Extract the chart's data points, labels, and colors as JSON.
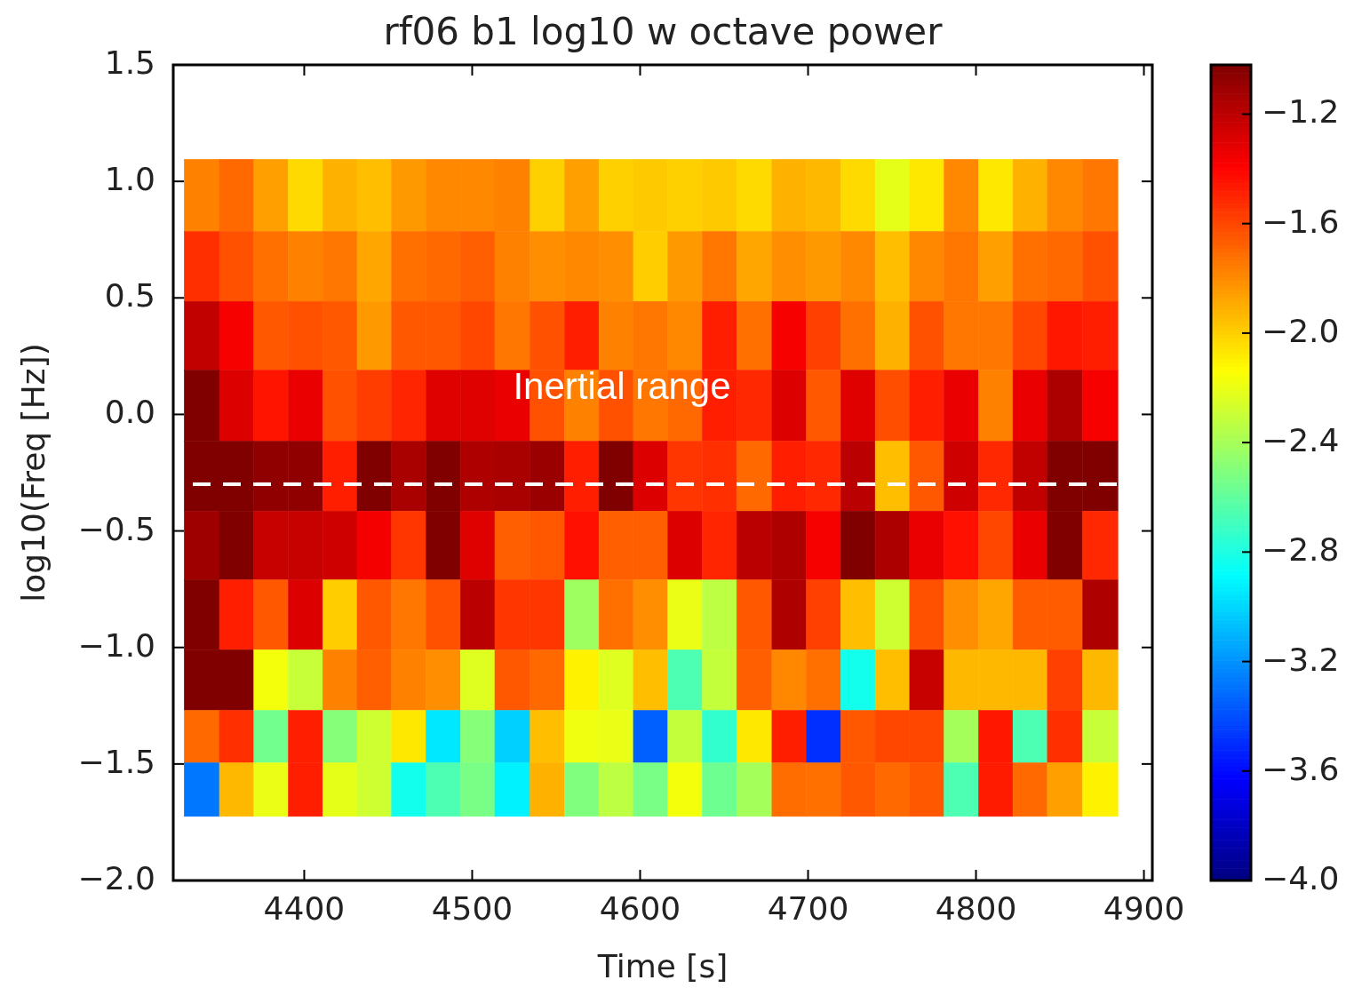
{
  "chart_data": {
    "type": "heatmap",
    "title": "rf06 b1 log10 w octave power",
    "xlabel": "Time [s]",
    "ylabel": "log10(Freq [Hz])",
    "x": [
      4339,
      4360,
      4380,
      4401,
      4421,
      4442,
      4462,
      4483,
      4503,
      4524,
      4545,
      4565,
      4586,
      4606,
      4627,
      4647,
      4668,
      4689,
      4709,
      4730,
      4750,
      4771,
      4791,
      4812,
      4832,
      4853,
      4874
    ],
    "y": [
      0.94,
      0.63,
      0.34,
      0.04,
      -0.27,
      -0.56,
      -0.86,
      -1.16,
      -1.38,
      -1.61
    ],
    "cells": [
      [
        -1.77,
        -1.7,
        -1.86,
        -2.03,
        -1.91,
        -1.95,
        -1.84,
        -1.79,
        -1.79,
        -1.77,
        -2.0,
        -1.86,
        -2.0,
        -1.98,
        -2.0,
        -1.98,
        -2.03,
        -1.91,
        -1.93,
        -2.03,
        -2.21,
        -2.07,
        -1.79,
        -2.07,
        -1.91,
        -1.79,
        -1.74
      ],
      [
        -1.53,
        -1.63,
        -1.72,
        -1.77,
        -1.74,
        -1.88,
        -1.72,
        -1.7,
        -1.67,
        -1.77,
        -1.81,
        -1.79,
        -1.81,
        -1.99,
        -1.84,
        -1.74,
        -1.88,
        -1.81,
        -1.84,
        -1.79,
        -1.95,
        -1.79,
        -1.74,
        -1.86,
        -1.72,
        -1.7,
        -1.63
      ],
      [
        -1.21,
        -1.37,
        -1.65,
        -1.63,
        -1.65,
        -1.84,
        -1.65,
        -1.65,
        -1.6,
        -1.74,
        -1.63,
        -1.48,
        -1.77,
        -1.74,
        -1.79,
        -1.48,
        -1.72,
        -1.37,
        -1.58,
        -1.72,
        -1.91,
        -1.63,
        -1.74,
        -1.74,
        -1.6,
        -1.46,
        -1.48
      ],
      [
        -1.02,
        -1.29,
        -1.45,
        -1.33,
        -1.63,
        -1.57,
        -1.5,
        -1.3,
        -1.3,
        -1.33,
        -1.63,
        -1.77,
        -1.63,
        -1.74,
        -1.7,
        -1.48,
        -1.51,
        -1.29,
        -1.65,
        -1.3,
        -1.62,
        -1.48,
        -1.33,
        -1.77,
        -1.33,
        -1.15,
        -1.37
      ],
      [
        -1.02,
        -1.02,
        -1.07,
        -1.07,
        -1.48,
        -1.02,
        -1.14,
        -1.02,
        -1.16,
        -1.14,
        -1.1,
        -1.48,
        -1.02,
        -1.29,
        -1.55,
        -1.53,
        -1.7,
        -1.48,
        -1.51,
        -1.19,
        -1.95,
        -1.65,
        -1.25,
        -1.51,
        -1.21,
        -1.02,
        -1.02
      ],
      [
        -1.11,
        -1.02,
        -1.23,
        -1.23,
        -1.25,
        -1.36,
        -1.55,
        -1.02,
        -1.3,
        -1.67,
        -1.65,
        -1.44,
        -1.67,
        -1.67,
        -1.29,
        -1.5,
        -1.19,
        -1.16,
        -1.37,
        -1.02,
        -1.15,
        -1.33,
        -1.44,
        -1.6,
        -1.33,
        -1.02,
        -1.51
      ],
      [
        -1.02,
        -1.48,
        -1.65,
        -1.29,
        -1.99,
        -1.65,
        -1.74,
        -1.63,
        -1.19,
        -1.55,
        -1.55,
        -2.42,
        -1.72,
        -1.81,
        -2.2,
        -2.33,
        -1.65,
        -1.16,
        -1.58,
        -1.95,
        -2.28,
        -1.63,
        -1.81,
        -1.88,
        -1.66,
        -1.66,
        -1.16
      ],
      [
        -1.02,
        -1.02,
        -2.17,
        -2.3,
        -1.77,
        -1.67,
        -1.77,
        -1.81,
        -2.23,
        -1.65,
        -1.7,
        -2.1,
        -2.23,
        -1.95,
        -2.66,
        -2.31,
        -1.67,
        -1.79,
        -1.72,
        -2.83,
        -1.95,
        -1.23,
        -1.93,
        -1.93,
        -1.93,
        -1.58,
        -1.93
      ],
      [
        -1.7,
        -1.53,
        -2.55,
        -1.48,
        -2.49,
        -2.28,
        -2.07,
        -2.95,
        -2.49,
        -3.02,
        -1.95,
        -2.18,
        -2.2,
        -3.35,
        -2.31,
        -2.74,
        -2.07,
        -1.48,
        -3.49,
        -1.65,
        -1.6,
        -1.6,
        -2.4,
        -1.46,
        -2.66,
        -1.53,
        -2.3
      ],
      [
        -3.28,
        -1.93,
        -2.2,
        -1.48,
        -2.21,
        -2.28,
        -2.83,
        -2.66,
        -2.53,
        -2.92,
        -1.91,
        -2.51,
        -2.33,
        -2.53,
        -2.17,
        -2.56,
        -2.4,
        -1.71,
        -1.72,
        -1.65,
        -1.7,
        -1.65,
        -2.66,
        -1.47,
        -1.7,
        -1.86,
        -2.1
      ]
    ],
    "xlim": [
      4322,
      4905
    ],
    "xticks": [
      4400,
      4500,
      4600,
      4700,
      4800,
      4900
    ],
    "ylim": [
      -2.0,
      1.5
    ],
    "yticks": [
      {
        "value": -2.0,
        "label": "−2.0"
      },
      {
        "value": -1.5,
        "label": "−1.5"
      },
      {
        "value": -1.0,
        "label": "−1.0"
      },
      {
        "value": -0.5,
        "label": "−0.5"
      },
      {
        "value": 0.0,
        "label": "0.0"
      },
      {
        "value": 0.5,
        "label": "0.5"
      },
      {
        "value": 1.0,
        "label": "1.0"
      },
      {
        "value": 1.5,
        "label": "1.5"
      }
    ],
    "clim": [
      -4.0,
      -1.02
    ],
    "cticks": [
      {
        "value": -4.0,
        "label": "−4.0"
      },
      {
        "value": -3.6,
        "label": "−3.6"
      },
      {
        "value": -3.2,
        "label": "−3.2"
      },
      {
        "value": -2.8,
        "label": "−2.8"
      },
      {
        "value": -2.4,
        "label": "−2.4"
      },
      {
        "value": -2.0,
        "label": "−2.0"
      },
      {
        "value": -1.6,
        "label": "−1.6"
      },
      {
        "value": -1.2,
        "label": "−1.2"
      }
    ],
    "ref_lines": [
      {
        "axis": "y",
        "value": -0.3,
        "color": "#ffffff",
        "line_style": "dashed"
      }
    ],
    "annotations": [
      "Inertial range"
    ],
    "grid": false
  }
}
